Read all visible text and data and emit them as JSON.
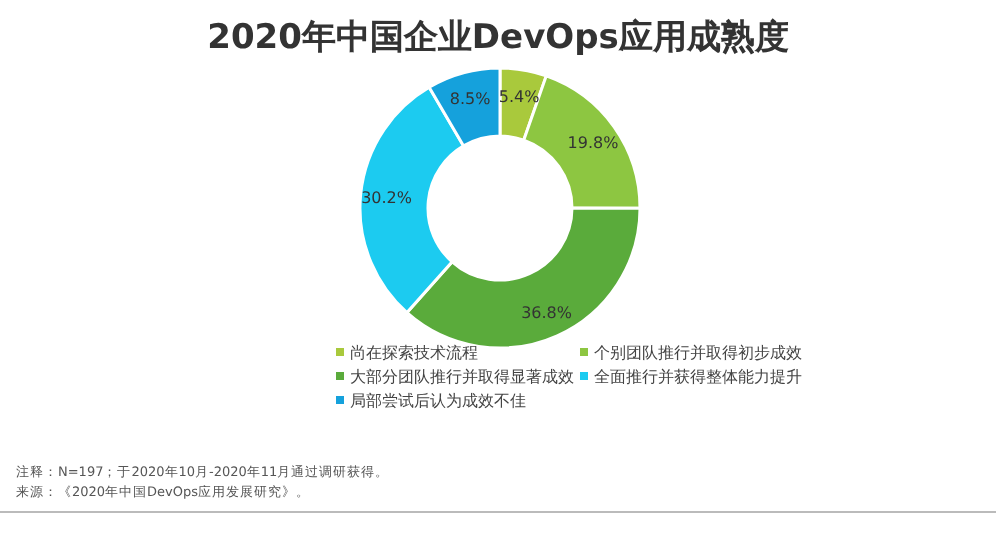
{
  "chart_data": {
    "type": "donut",
    "title": "2020年中国企业DevOps应用成熟度",
    "categories": [
      "尚在探索技术流程",
      "个别团队推行并取得初步成效",
      "大部分团队推行并取得显著成效",
      "全面推行并获得整体能力提升",
      "局部尝试后认为成效不佳"
    ],
    "values": [
      5.4,
      19.8,
      36.8,
      30.2,
      8.5
    ],
    "colors": [
      "#a9c93c",
      "#8dc641",
      "#5aab3b",
      "#1ccbf0",
      "#15a1dc"
    ],
    "value_labels": [
      "5.4%",
      "19.8%",
      "36.8%",
      "30.2%",
      "8.5%"
    ],
    "legend": "bottom",
    "annotations": [
      "注释：N=197；于2020年10月-2020年11月通过调研获得。",
      "来源：《2020年中国DevOps应用发展研究》。"
    ]
  }
}
